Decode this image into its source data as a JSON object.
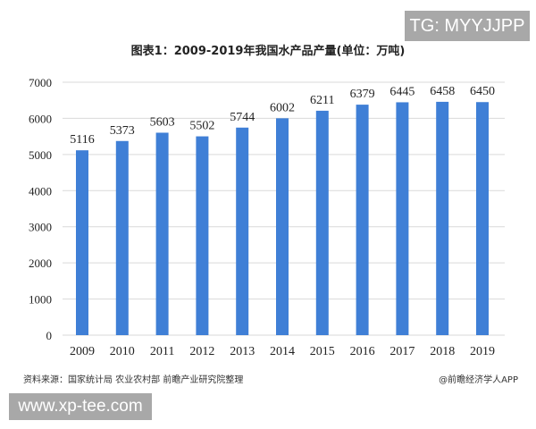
{
  "watermarks": {
    "tg": "TG: MYYJJPP",
    "site": "www.xp-tee.com"
  },
  "footer": {
    "source": "资料来源：国家统计局 农业农村部 前瞻产业研究院整理",
    "credit": "@前瞻经济学人APP"
  },
  "chart_data": {
    "type": "bar",
    "title": "图表1：2009-2019年我国水产品产量(单位：万吨)",
    "categories": [
      "2009",
      "2010",
      "2011",
      "2012",
      "2013",
      "2014",
      "2015",
      "2016",
      "2017",
      "2018",
      "2019"
    ],
    "values": [
      5116,
      5373,
      5603,
      5502,
      5744,
      6002,
      6211,
      6379,
      6445,
      6458,
      6450
    ],
    "ylim": [
      0,
      7000
    ],
    "yticks": [
      0,
      1000,
      2000,
      3000,
      4000,
      5000,
      6000,
      7000
    ],
    "grid": true,
    "bar_color": "#3f7fd6",
    "xlabel": "",
    "ylabel": ""
  }
}
